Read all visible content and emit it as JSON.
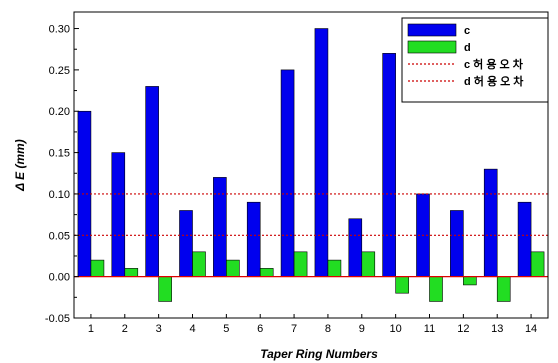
{
  "chart_data": {
    "type": "bar",
    "categories": [
      "1",
      "2",
      "3",
      "4",
      "5",
      "6",
      "7",
      "8",
      "9",
      "10",
      "11",
      "12",
      "13",
      "14"
    ],
    "series": [
      {
        "name": "c",
        "color": "#0000ee",
        "values": [
          0.2,
          0.15,
          0.23,
          0.08,
          0.12,
          0.09,
          0.25,
          0.3,
          0.07,
          0.27,
          0.1,
          0.08,
          0.13,
          0.09
        ]
      },
      {
        "name": "d",
        "color": "#22dd22",
        "values": [
          0.02,
          0.01,
          -0.03,
          0.03,
          0.02,
          0.01,
          0.03,
          0.02,
          0.03,
          -0.02,
          -0.03,
          -0.01,
          -0.03,
          0.03
        ]
      }
    ],
    "reference_lines": [
      {
        "name": "c 허 용 오 차",
        "value": 0.1,
        "color": "#cc0000",
        "style": "dotted"
      },
      {
        "name": "d 허 용 오 차",
        "value": 0.05,
        "color": "#cc0000",
        "style": "dotted"
      }
    ],
    "xlabel": "Taper Ring  Numbers",
    "ylabel": "Δ E   (mm)",
    "ylim": [
      -0.05,
      0.32
    ],
    "yticks": [
      "-0.05",
      "0.00",
      "0.05",
      "0.10",
      "0.15",
      "0.20",
      "0.25",
      "0.30"
    ],
    "zero_line_color": "#dd0000",
    "legend_position": "top-right",
    "grid": false
  }
}
